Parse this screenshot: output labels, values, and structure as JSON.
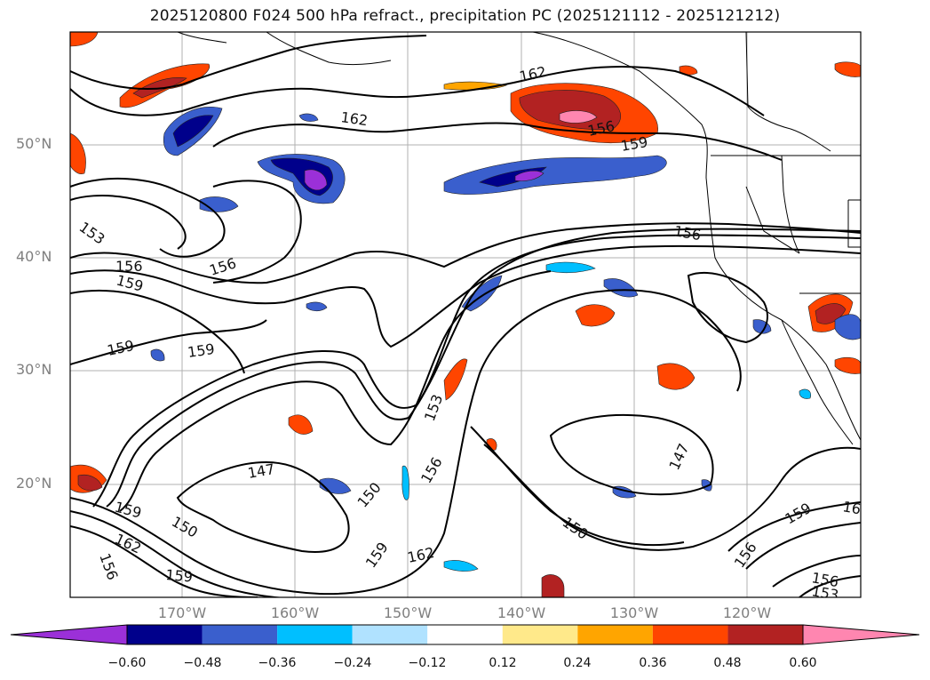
{
  "title": "2025120800 F024 500 hPa refract., precipitation PC (2025121112 - 2025121212)",
  "lat_labels": [
    "50°N",
    "40°N",
    "30°N",
    "20°N"
  ],
  "lon_labels": [
    "170°W",
    "160°W",
    "150°W",
    "140°W",
    "130°W",
    "120°W"
  ],
  "colorbar": {
    "ticks": [
      "−0.60",
      "−0.48",
      "−0.36",
      "−0.24",
      "−0.12",
      "0.12",
      "0.24",
      "0.36",
      "0.48",
      "0.60"
    ],
    "colors": [
      "#9b30d8",
      "#00008b",
      "#3a5fcd",
      "#00bfff",
      "#b0e2ff",
      "#ffffff",
      "#ffe98a",
      "#ffa500",
      "#ff4500",
      "#b22222",
      "#ff86b0"
    ]
  },
  "contour_labels": [
    "162",
    "162",
    "156",
    "159",
    "153",
    "156",
    "159",
    "156",
    "159",
    "159",
    "153",
    "147",
    "150",
    "156",
    "147",
    "150",
    "159",
    "150",
    "162",
    "156",
    "159",
    "162",
    "159",
    "156",
    "153",
    "156",
    "156",
    "16",
    "159"
  ]
}
